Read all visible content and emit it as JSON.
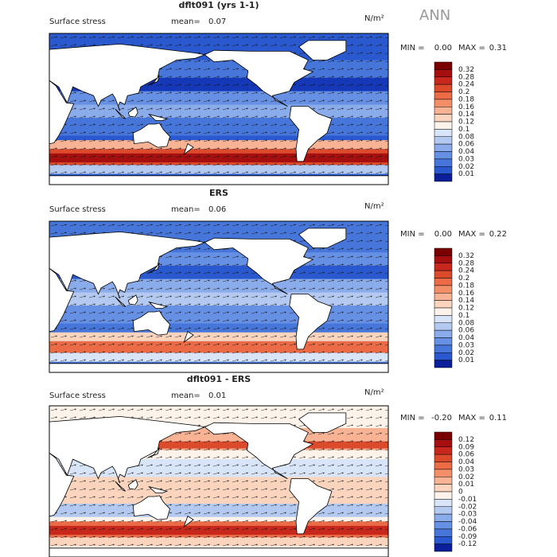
{
  "season": "ANN",
  "panels": [
    {
      "title": "dflt091 (yrs 1-1)",
      "subtitle": "Surface stress",
      "mean_label": "mean=",
      "mean": "0.07",
      "units": "N/m²",
      "min_label": "MIN =",
      "min": "0.00",
      "max_label": "MAX =",
      "max": "0.31",
      "colorbar": {
        "labels": [
          "0.32",
          "0.28",
          "0.24",
          "0.2",
          "0.18",
          "0.16",
          "0.14",
          "0.12",
          "0.1",
          "0.08",
          "0.06",
          "0.04",
          "0.03",
          "0.02",
          "0.01"
        ],
        "colors": [
          "#7a0000",
          "#a50f0f",
          "#c8281c",
          "#dc4a2c",
          "#ea6b45",
          "#f28f68",
          "#f7b394",
          "#fad4bd",
          "#fdf3ea",
          "#d8e4f7",
          "#b3c9f0",
          "#8aaceb",
          "#6690e3",
          "#4676da",
          "#2a59cf",
          "#0c1f9a"
        ]
      }
    },
    {
      "title": "ERS",
      "subtitle": "Surface stress",
      "mean_label": "mean=",
      "mean": "0.06",
      "units": "N/m²",
      "min_label": "MIN =",
      "min": "0.00",
      "max_label": "MAX =",
      "max": "0.22",
      "colorbar": {
        "labels": [
          "0.32",
          "0.28",
          "0.24",
          "0.2",
          "0.18",
          "0.16",
          "0.14",
          "0.12",
          "0.1",
          "0.08",
          "0.06",
          "0.04",
          "0.03",
          "0.02",
          "0.01"
        ],
        "colors": [
          "#7a0000",
          "#a50f0f",
          "#c8281c",
          "#dc4a2c",
          "#ea6b45",
          "#f28f68",
          "#f7b394",
          "#fad4bd",
          "#fdf3ea",
          "#d8e4f7",
          "#b3c9f0",
          "#8aaceb",
          "#6690e3",
          "#4676da",
          "#2a59cf",
          "#0c1f9a"
        ]
      }
    },
    {
      "title": "dflt091 - ERS",
      "subtitle": "Surface stress",
      "mean_label": "mean=",
      "mean": "0.01",
      "units": "N/m²",
      "min_label": "MIN =",
      "min": "-0.20",
      "max_label": "MAX =",
      "max": "0.11",
      "colorbar": {
        "labels": [
          "0.12",
          "0.09",
          "0.06",
          "0.04",
          "0.03",
          "0.02",
          "0.01",
          "0",
          "-0.01",
          "-0.02",
          "-0.03",
          "-0.04",
          "-0.06",
          "-0.09",
          "-0.12"
        ],
        "colors": [
          "#7a0000",
          "#a50f0f",
          "#c8281c",
          "#dc4a2c",
          "#ea6b45",
          "#f28f68",
          "#f7b394",
          "#fad4bd",
          "#fdf3ea",
          "#d8e4f7",
          "#b3c9f0",
          "#8aaceb",
          "#6690e3",
          "#4676da",
          "#2a59cf",
          "#0c1f9a"
        ]
      }
    }
  ]
}
